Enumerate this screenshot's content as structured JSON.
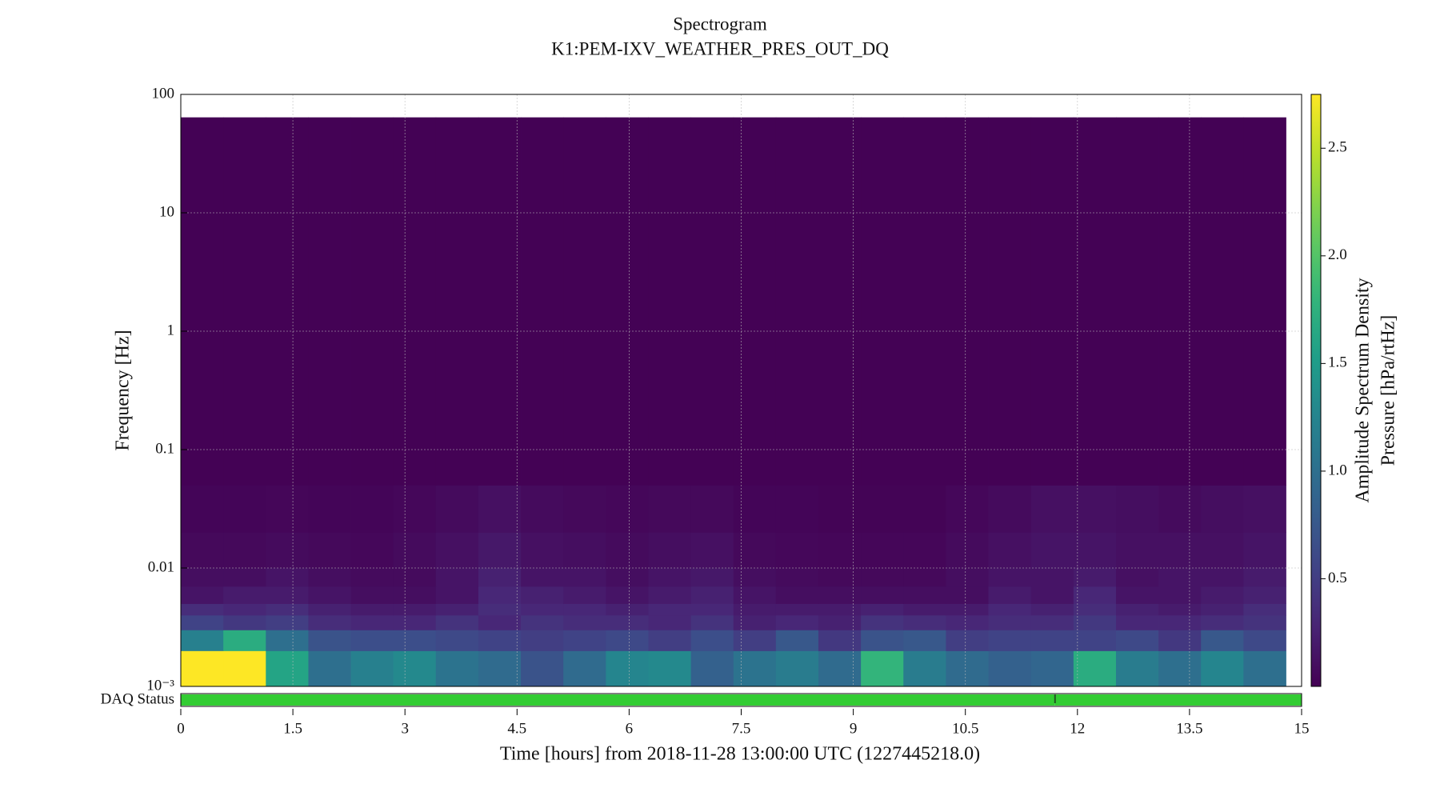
{
  "chart_data": {
    "type": "spectrogram",
    "title": "Spectrogram",
    "subtitle": "K1:PEM-IXV_WEATHER_PRES_OUT_DQ",
    "x_label": "Time [hours] from 2018-11-28 13:00:00 UTC (1227445218.0)",
    "y_label": "Frequency [Hz]",
    "colorbar_label": [
      "Amplitude Spectrum Density",
      "Pressure [hPa/rtHz]"
    ],
    "xlim": [
      0,
      15
    ],
    "xticks": [
      0,
      1.5,
      3,
      4.5,
      6,
      7.5,
      9,
      10.5,
      12,
      13.5,
      15
    ],
    "ylim": [
      0.001,
      100
    ],
    "yscale": "log",
    "yticks": [
      {
        "value": 0.001,
        "label": "10⁻³"
      },
      0.01,
      0.1,
      1,
      10,
      100
    ],
    "grid": true,
    "colormap": "viridis",
    "clim": [
      0,
      2.75
    ],
    "cticks": [
      0.5,
      {
        "value": 1,
        "label": "1.0"
      },
      1.5,
      {
        "value": 2,
        "label": "2.0"
      },
      2.5
    ],
    "x_bins": [
      0,
      0.569,
      1.138,
      1.707,
      2.276,
      2.844,
      3.413,
      3.982,
      4.551,
      5.12,
      5.689,
      6.258,
      6.827,
      7.396,
      7.964,
      8.533,
      9.102,
      9.671,
      10.24,
      10.809,
      11.378,
      11.947,
      12.516,
      13.084,
      13.653,
      14.222,
      14.791
    ],
    "y_bins": [
      0.001,
      0.002,
      0.003,
      0.004,
      0.005,
      0.007,
      0.01,
      0.02,
      0.05,
      64
    ],
    "values": [
      [
        2.75,
        2.75,
        1.6,
        1.0,
        1.2,
        1.3,
        1.05,
        0.95,
        0.7,
        0.95,
        1.25,
        1.3,
        0.85,
        1.05,
        1.15,
        0.95,
        1.8,
        1.15,
        0.95,
        0.85,
        0.9,
        1.7,
        1.15,
        1.0,
        1.25,
        1.0
      ],
      [
        1.2,
        1.7,
        1.0,
        0.7,
        0.65,
        0.65,
        0.6,
        0.55,
        0.5,
        0.55,
        0.6,
        0.5,
        0.65,
        0.5,
        0.75,
        0.45,
        0.7,
        0.75,
        0.5,
        0.55,
        0.55,
        0.55,
        0.6,
        0.45,
        0.75,
        0.6
      ],
      [
        0.55,
        0.45,
        0.5,
        0.35,
        0.3,
        0.3,
        0.4,
        0.3,
        0.4,
        0.35,
        0.35,
        0.3,
        0.4,
        0.25,
        0.3,
        0.25,
        0.4,
        0.35,
        0.3,
        0.35,
        0.35,
        0.45,
        0.3,
        0.3,
        0.35,
        0.4
      ],
      [
        0.35,
        0.3,
        0.35,
        0.25,
        0.2,
        0.2,
        0.25,
        0.35,
        0.3,
        0.3,
        0.25,
        0.3,
        0.3,
        0.2,
        0.2,
        0.2,
        0.25,
        0.2,
        0.2,
        0.3,
        0.25,
        0.35,
        0.25,
        0.2,
        0.25,
        0.35
      ],
      [
        0.15,
        0.2,
        0.2,
        0.15,
        0.1,
        0.1,
        0.15,
        0.3,
        0.25,
        0.2,
        0.15,
        0.2,
        0.25,
        0.15,
        0.1,
        0.1,
        0.1,
        0.1,
        0.1,
        0.2,
        0.15,
        0.3,
        0.15,
        0.15,
        0.2,
        0.25
      ],
      [
        0.1,
        0.1,
        0.15,
        0.1,
        0.08,
        0.08,
        0.15,
        0.25,
        0.15,
        0.15,
        0.1,
        0.15,
        0.18,
        0.1,
        0.08,
        0.06,
        0.06,
        0.06,
        0.1,
        0.15,
        0.15,
        0.2,
        0.12,
        0.15,
        0.15,
        0.2
      ],
      [
        0.06,
        0.06,
        0.08,
        0.06,
        0.05,
        0.08,
        0.12,
        0.18,
        0.12,
        0.1,
        0.08,
        0.1,
        0.12,
        0.06,
        0.05,
        0.04,
        0.04,
        0.04,
        0.08,
        0.12,
        0.15,
        0.15,
        0.12,
        0.12,
        0.12,
        0.15
      ],
      [
        0.03,
        0.03,
        0.04,
        0.03,
        0.03,
        0.05,
        0.08,
        0.12,
        0.08,
        0.06,
        0.05,
        0.06,
        0.06,
        0.03,
        0.03,
        0.02,
        0.02,
        0.02,
        0.05,
        0.08,
        0.12,
        0.12,
        0.1,
        0.08,
        0.1,
        0.12
      ],
      [
        0.01,
        0.01,
        0.01,
        0.01,
        0.01,
        0.01,
        0.01,
        0.01,
        0.01,
        0.01,
        0.01,
        0.01,
        0.01,
        0.01,
        0.01,
        0.01,
        0.01,
        0.01,
        0.01,
        0.01,
        0.01,
        0.01,
        0.01,
        0.01,
        0.01,
        0.01
      ]
    ],
    "daq_label": "DAQ Status",
    "daq_color": "#33cc33",
    "daq_segments": [
      [
        0,
        11.7
      ],
      [
        11.7,
        15
      ]
    ]
  }
}
